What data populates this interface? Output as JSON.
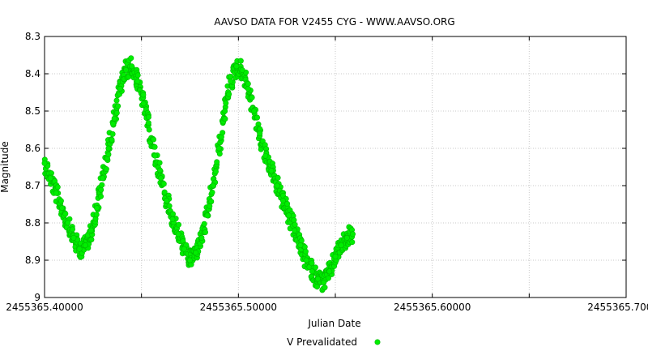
{
  "chart_data": {
    "type": "scatter",
    "title": "AAVSO DATA FOR V2455 CYG - WWW.AAVSO.ORG",
    "xlabel": "Julian Date",
    "ylabel": "Magnitude",
    "xlim": [
      2455365.4,
      2455365.7
    ],
    "ylim": [
      8.3,
      9.0
    ],
    "y_inverted": true,
    "x_tick_values": [
      2455365.4,
      2455365.5,
      2455365.6,
      2455365.7
    ],
    "x_tick_labels": [
      "2455365.40000",
      "2455365.50000",
      "2455365.60000",
      "2455365.70000"
    ],
    "y_tick_values": [
      8.3,
      8.4,
      8.5,
      8.6,
      8.7,
      8.8,
      8.9,
      9.0
    ],
    "y_tick_labels": [
      "8.3",
      "8.4",
      "8.5",
      "8.6",
      "8.7",
      "8.8",
      "8.9",
      "9"
    ],
    "grid": true,
    "legend_position": "bottom-center",
    "series": [
      {
        "name": "V Prevalidated",
        "color": "#00ee00",
        "x": [
          2455365.4,
          2455365.403,
          2455365.406,
          2455365.409,
          2455365.412,
          2455365.415,
          2455365.418,
          2455365.421,
          2455365.424,
          2455365.427,
          2455365.43,
          2455365.433,
          2455365.436,
          2455365.439,
          2455365.442,
          2455365.445,
          2455365.448,
          2455365.451,
          2455365.454,
          2455365.457,
          2455365.46,
          2455365.463,
          2455365.466,
          2455365.469,
          2455365.472,
          2455365.475,
          2455365.478,
          2455365.481,
          2455365.484,
          2455365.487,
          2455365.49,
          2455365.493,
          2455365.496,
          2455365.499,
          2455365.502,
          2455365.505,
          2455365.508,
          2455365.511,
          2455365.514,
          2455365.517,
          2455365.52,
          2455365.523,
          2455365.526,
          2455365.529,
          2455365.532,
          2455365.535,
          2455365.538,
          2455365.541,
          2455365.544,
          2455365.547,
          2455365.55,
          2455365.553,
          2455365.556,
          2455365.559
        ],
        "y": [
          8.64,
          8.68,
          8.72,
          8.76,
          8.8,
          8.84,
          8.87,
          8.86,
          8.82,
          8.76,
          8.68,
          8.6,
          8.52,
          8.44,
          8.39,
          8.38,
          8.42,
          8.48,
          8.55,
          8.62,
          8.68,
          8.74,
          8.79,
          8.83,
          8.87,
          8.9,
          8.88,
          8.84,
          8.78,
          8.7,
          8.6,
          8.5,
          8.42,
          8.38,
          8.39,
          8.44,
          8.5,
          8.56,
          8.62,
          8.66,
          8.7,
          8.74,
          8.78,
          8.82,
          8.86,
          8.9,
          8.93,
          8.95,
          8.96,
          8.93,
          8.89,
          8.86,
          8.84,
          8.83
        ]
      }
    ]
  }
}
